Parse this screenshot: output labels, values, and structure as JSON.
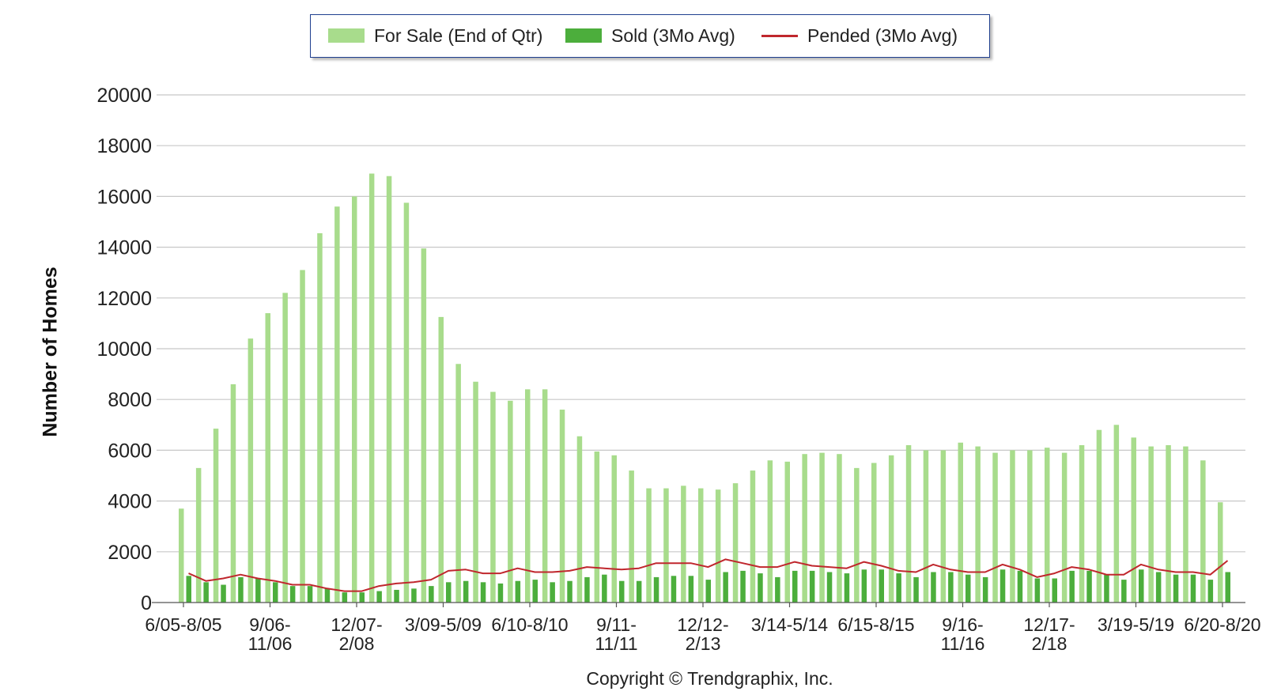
{
  "chart_data": {
    "type": "bar",
    "ylabel": "Number of Homes",
    "ylim": [
      0,
      20000
    ],
    "yticks": [
      0,
      2000,
      4000,
      6000,
      8000,
      10000,
      12000,
      14000,
      16000,
      18000,
      20000
    ],
    "grid": true,
    "legend_position": "top-center",
    "colors": {
      "for_sale": "#a8dc8c",
      "sold": "#4cae3c",
      "pended": "#c0272d",
      "grid": "#c8c8c8"
    },
    "xtick_labels": [
      {
        "index": 0,
        "lines": [
          "6/05-8/05"
        ]
      },
      {
        "index": 5,
        "lines": [
          "9/06-",
          "11/06"
        ]
      },
      {
        "index": 10,
        "lines": [
          "12/07-",
          "2/08"
        ]
      },
      {
        "index": 15,
        "lines": [
          "3/09-5/09"
        ]
      },
      {
        "index": 20,
        "lines": [
          "6/10-8/10"
        ]
      },
      {
        "index": 25,
        "lines": [
          "9/11-",
          "11/11"
        ]
      },
      {
        "index": 30,
        "lines": [
          "12/12-",
          "2/13"
        ]
      },
      {
        "index": 35,
        "lines": [
          "3/14-5/14"
        ]
      },
      {
        "index": 40,
        "lines": [
          "6/15-8/15"
        ]
      },
      {
        "index": 45,
        "lines": [
          "9/16-",
          "11/16"
        ]
      },
      {
        "index": 50,
        "lines": [
          "12/17-",
          "2/18"
        ]
      },
      {
        "index": 55,
        "lines": [
          "3/19-5/19"
        ]
      },
      {
        "index": 60,
        "lines": [
          "6/20-8/20"
        ]
      }
    ],
    "series": [
      {
        "name": "For Sale (End of Qtr)",
        "kind": "bar",
        "values": [
          3700,
          5300,
          6850,
          8600,
          10400,
          11400,
          12200,
          13100,
          14550,
          15600,
          16000,
          16900,
          16800,
          15750,
          13950,
          11250,
          9400,
          8700,
          8300,
          7950,
          8400,
          8400,
          7600,
          6550,
          5950,
          5800,
          5200,
          4500,
          4500,
          4600,
          4500,
          4450,
          4700,
          5200,
          5600,
          5550,
          5850,
          5900,
          5850,
          5300,
          5500,
          5800,
          6200,
          6000,
          6000,
          6300,
          6150,
          5900,
          6000,
          6000,
          6100,
          5900,
          6200,
          6800,
          7000,
          6500,
          6150,
          6200,
          6150,
          5600,
          3950
        ]
      },
      {
        "name": "Sold (3Mo Avg)",
        "kind": "bar",
        "values": [
          1050,
          800,
          700,
          1000,
          950,
          800,
          650,
          650,
          550,
          400,
          400,
          450,
          500,
          550,
          650,
          800,
          850,
          800,
          750,
          850,
          900,
          800,
          850,
          1000,
          1100,
          850,
          850,
          1000,
          1050,
          1050,
          900,
          1200,
          1250,
          1150,
          1000,
          1250,
          1250,
          1200,
          1150,
          1300,
          1300,
          1150,
          1000,
          1200,
          1200,
          1100,
          1000,
          1300,
          1250,
          950,
          950,
          1250,
          1250,
          1100,
          900,
          1300,
          1200,
          1100,
          1100,
          900,
          1200
        ]
      },
      {
        "name": "Pended (3Mo Avg)",
        "kind": "line",
        "values": [
          1150,
          850,
          950,
          1100,
          950,
          850,
          700,
          700,
          550,
          450,
          450,
          650,
          750,
          800,
          900,
          1250,
          1300,
          1150,
          1150,
          1350,
          1200,
          1200,
          1250,
          1400,
          1350,
          1300,
          1350,
          1550,
          1550,
          1550,
          1400,
          1700,
          1550,
          1400,
          1400,
          1600,
          1450,
          1400,
          1350,
          1600,
          1450,
          1250,
          1200,
          1500,
          1300,
          1200,
          1200,
          1500,
          1300,
          1000,
          1150,
          1400,
          1300,
          1100,
          1100,
          1500,
          1300,
          1200,
          1200,
          1100,
          1650
        ]
      }
    ]
  },
  "copyright": "Copyright © Trendgraphix, Inc."
}
